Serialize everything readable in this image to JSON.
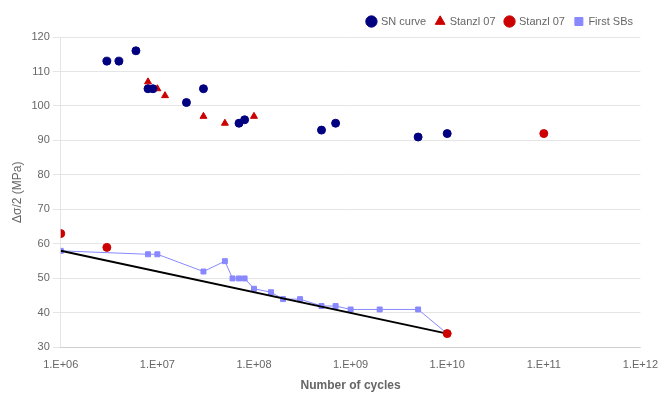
{
  "chart_data": {
    "type": "scatter",
    "xlabel": "Number of cycles",
    "ylabel": "Δσ/2 (MPa)",
    "log": "x",
    "grid": "y",
    "legend": "upper right",
    "xlim": [
      1000000.0,
      1000000000000.0
    ],
    "xticks": [
      {
        "value": 1000000.0,
        "label": "1.E+06"
      },
      {
        "value": 10000000.0,
        "label": "1.E+07"
      },
      {
        "value": 100000000.0,
        "label": "1.E+08"
      },
      {
        "value": 1000000000.0,
        "label": "1.E+09"
      },
      {
        "value": 10000000000.0,
        "label": "1.E+10"
      },
      {
        "value": 100000000000.0,
        "label": "1.E+11"
      },
      {
        "value": 1000000000000.0,
        "label": "1.E+12"
      }
    ],
    "ylim": [
      30,
      120
    ],
    "yticks": [
      30,
      40,
      50,
      60,
      70,
      80,
      90,
      100,
      110,
      120
    ],
    "series": [
      {
        "name": "SN curve",
        "color": "#000080",
        "marker": "circle",
        "line_style": "none",
        "x": [
          3000000.0,
          4000000.0,
          6000000.0,
          8000000.0,
          9000000.0,
          20000000.0,
          30000000.0,
          70000000.0,
          80000000.0,
          500000000.0,
          700000000.0,
          5000000000.0,
          10000000000.0
        ],
        "values": [
          113,
          113,
          116,
          105,
          105,
          101,
          105,
          95,
          96,
          93,
          95,
          91,
          92
        ]
      },
      {
        "name": "Stanzl 07",
        "color": "#CC0000",
        "marker": "triangle",
        "line_style": "none",
        "x": [
          8000000.0,
          10000000.0,
          12000000.0,
          30000000.0,
          50000000.0,
          100000000.0
        ],
        "values": [
          107,
          105,
          103,
          97,
          95,
          97
        ]
      },
      {
        "name": "First SBs",
        "color": "#8888FF",
        "marker": "square",
        "line_style": "solid",
        "x": [
          1000000.0,
          8000000.0,
          10000000.0,
          30000000.0,
          50000000.0,
          60000000.0,
          70000000.0,
          80000000.0,
          100000000.0,
          150000000.0,
          200000000.0,
          300000000.0,
          500000000.0,
          700000000.0,
          1000000000.0,
          2000000000.0,
          5000000000.0,
          10000000000.0
        ],
        "values": [
          58,
          57,
          57,
          52,
          55,
          50,
          50,
          50,
          47,
          46,
          44,
          44,
          42,
          42,
          41,
          41,
          41,
          34
        ]
      },
      {
        "name": "Stanzl 07",
        "color": "#CC0000",
        "marker": "circle",
        "line_style": "none",
        "x": [
          1000000.0,
          3000000.0,
          10000000000.0,
          100000000000.0
        ],
        "values": [
          63,
          59,
          34,
          92
        ]
      },
      {
        "color": "#000000",
        "marker": "none",
        "line_style": "solid",
        "x": [
          1000000.0,
          10000000000.0
        ],
        "values": [
          58,
          34
        ]
      }
    ]
  }
}
